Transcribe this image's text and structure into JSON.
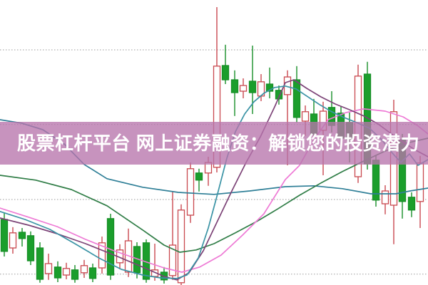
{
  "banner": {
    "text": "股票杠杆平台 网上证券融资：解锁您的投资潜力",
    "bg_color": "rgba(183,117,172,0.78)",
    "text_color": "#ffffff"
  },
  "chart_data": {
    "type": "candlestick",
    "title": "",
    "xlabel": "",
    "ylabel": "",
    "x_axis_visible": false,
    "y_axis_visible": false,
    "legend": "none",
    "background": "#ffffff",
    "xlim": [
      0,
      600
    ],
    "ylim": [
      0,
      100
    ],
    "gridlines": {
      "style": "dotted",
      "color": "#9a9a9a",
      "levels": [
        82.5,
        56.3,
        30.0,
        3.8
      ]
    },
    "colors": {
      "up_stroke": "#c9484f",
      "up_fill": "#ffffff",
      "down_stroke": "#178f27",
      "down_fill": "#1b9e2c"
    },
    "candles": {
      "columns": [
        "x",
        "open",
        "high",
        "low",
        "close"
      ],
      "rows": [
        [
          6,
          23.0,
          25.5,
          10.0,
          11.8
        ],
        [
          18,
          13.0,
          20.3,
          11.0,
          18.3
        ],
        [
          31,
          18.5,
          20.0,
          13.5,
          16.3
        ],
        [
          43,
          17.3,
          18.8,
          7.0,
          8.5
        ],
        [
          56,
          13.0,
          15.0,
          0.8,
          2.0
        ],
        [
          68,
          4.0,
          11.0,
          1.8,
          7.5
        ],
        [
          81,
          6.3,
          8.3,
          1.0,
          2.5
        ],
        [
          93,
          3.5,
          7.8,
          2.0,
          5.8
        ],
        [
          105,
          5.3,
          7.0,
          0.8,
          2.0
        ],
        [
          118,
          4.3,
          8.8,
          2.5,
          6.8
        ],
        [
          130,
          6.0,
          7.5,
          1.0,
          2.3
        ],
        [
          143,
          6.0,
          17.0,
          4.0,
          14.8
        ],
        [
          155,
          23.3,
          25.0,
          1.8,
          3.5
        ],
        [
          168,
          7.8,
          14.3,
          5.5,
          12.3
        ],
        [
          180,
          4.5,
          19.8,
          2.8,
          15.5
        ],
        [
          192,
          13.5,
          15.0,
          2.3,
          4.3
        ],
        [
          205,
          14.8,
          16.0,
          0.8,
          2.0
        ],
        [
          217,
          3.0,
          14.5,
          1.5,
          5.3
        ],
        [
          230,
          4.5,
          6.3,
          0.5,
          1.8
        ],
        [
          242,
          3.3,
          33.0,
          1.8,
          14.0
        ],
        [
          254,
          0.8,
          28.3,
          0.0,
          26.3
        ],
        [
          267,
          24.5,
          43.0,
          21.8,
          40.8
        ],
        [
          279,
          39.3,
          40.8,
          32.8,
          36.8
        ],
        [
          292,
          39.3,
          45.0,
          34.8,
          43.0
        ],
        [
          304,
          41.3,
          97.5,
          39.5,
          76.8
        ],
        [
          316,
          77.0,
          84.3,
          70.5,
          72.0
        ],
        [
          329,
          72.0,
          75.3,
          59.3,
          67.5
        ],
        [
          341,
          68.0,
          72.5,
          65.5,
          70.0
        ],
        [
          354,
          71.5,
          84.0,
          60.0,
          67.5
        ],
        [
          366,
          66.3,
          74.0,
          64.5,
          71.3
        ],
        [
          378,
          70.5,
          76.3,
          65.5,
          68.0
        ],
        [
          391,
          68.3,
          70.0,
          63.3,
          65.3
        ],
        [
          403,
          66.8,
          75.3,
          42.0,
          73.0
        ],
        [
          416,
          72.0,
          76.8,
          57.0,
          58.8
        ],
        [
          428,
          57.5,
          63.0,
          52.3,
          60.8
        ],
        [
          440,
          60.0,
          65.3,
          50.0,
          52.8
        ],
        [
          453,
          54.3,
          64.3,
          38.5,
          61.0
        ],
        [
          465,
          62.3,
          68.0,
          53.5,
          56.0
        ],
        [
          478,
          60.3,
          62.8,
          47.3,
          51.5
        ],
        [
          490,
          57.0,
          60.5,
          43.0,
          51.0
        ],
        [
          502,
          38.0,
          77.3,
          35.8,
          73.3
        ],
        [
          515,
          74.0,
          78.3,
          40.5,
          42.5
        ],
        [
          527,
          43.8,
          45.5,
          27.5,
          29.8
        ],
        [
          540,
          28.5,
          35.0,
          24.8,
          33.0
        ],
        [
          552,
          28.0,
          65.0,
          14.3,
          60.8
        ],
        [
          564,
          51.0,
          53.0,
          23.3,
          29.3
        ],
        [
          577,
          30.8,
          32.5,
          23.8,
          26.3
        ],
        [
          589,
          29.3,
          45.3,
          20.0,
          42.8
        ]
      ]
    },
    "moving_averages": [
      {
        "name": "ma-slow-teal",
        "color": "#2f7f97",
        "points": [
          [
            0,
            58.0
          ],
          [
            30,
            56.8
          ],
          [
            60,
            54.5
          ],
          [
            90,
            49.5
          ],
          [
            118,
            42.3
          ],
          [
            150,
            37.3
          ],
          [
            200,
            34.3
          ],
          [
            250,
            32.5
          ],
          [
            300,
            31.8
          ],
          [
            350,
            33.0
          ],
          [
            400,
            34.5
          ],
          [
            440,
            34.8
          ],
          [
            480,
            33.8
          ],
          [
            520,
            32.0
          ],
          [
            555,
            32.0
          ],
          [
            575,
            33.0
          ],
          [
            600,
            34.0
          ]
        ]
      },
      {
        "name": "ma-dark-green",
        "color": "#2f7d46",
        "points": [
          [
            0,
            38.5
          ],
          [
            50,
            36.8
          ],
          [
            100,
            33.5
          ],
          [
            150,
            27.8
          ],
          [
            200,
            19.3
          ],
          [
            230,
            14.0
          ],
          [
            252,
            11.5
          ],
          [
            275,
            12.3
          ],
          [
            300,
            14.5
          ],
          [
            330,
            18.3
          ],
          [
            360,
            22.3
          ],
          [
            390,
            26.8
          ],
          [
            420,
            31.5
          ],
          [
            450,
            35.8
          ],
          [
            480,
            39.8
          ],
          [
            510,
            43.5
          ],
          [
            540,
            47.0
          ],
          [
            570,
            49.8
          ],
          [
            600,
            51.5
          ]
        ]
      },
      {
        "name": "ma-pink",
        "color": "#ee7ad5",
        "points": [
          [
            0,
            27.0
          ],
          [
            40,
            23.8
          ],
          [
            80,
            20.5
          ],
          [
            120,
            16.0
          ],
          [
            160,
            12.0
          ],
          [
            200,
            8.5
          ],
          [
            230,
            6.0
          ],
          [
            255,
            4.5
          ],
          [
            280,
            6.3
          ],
          [
            310,
            10.5
          ],
          [
            340,
            17.5
          ],
          [
            370,
            25.0
          ],
          [
            400,
            37.0
          ],
          [
            420,
            42.0
          ],
          [
            440,
            51.0
          ],
          [
            460,
            58.0
          ],
          [
            485,
            60.5
          ],
          [
            510,
            61.8
          ],
          [
            540,
            61.0
          ],
          [
            565,
            59.0
          ],
          [
            585,
            56.0
          ],
          [
            600,
            53.0
          ]
        ]
      },
      {
        "name": "ma-purple",
        "color": "#7c4377",
        "points": [
          [
            0,
            23.5
          ],
          [
            40,
            21.0
          ],
          [
            80,
            18.0
          ],
          [
            120,
            14.5
          ],
          [
            160,
            10.5
          ],
          [
            200,
            6.3
          ],
          [
            230,
            3.0
          ],
          [
            248,
            1.8
          ],
          [
            265,
            4.3
          ],
          [
            285,
            12.0
          ],
          [
            305,
            22.5
          ],
          [
            325,
            33.0
          ],
          [
            345,
            43.0
          ],
          [
            365,
            52.0
          ],
          [
            385,
            62.5
          ],
          [
            400,
            71.0
          ],
          [
            412,
            72.0
          ],
          [
            430,
            69.0
          ],
          [
            450,
            66.0
          ],
          [
            470,
            63.5
          ],
          [
            490,
            61.5
          ],
          [
            510,
            59.3
          ],
          [
            530,
            56.5
          ],
          [
            550,
            52.8
          ],
          [
            570,
            49.3
          ],
          [
            585,
            47.0
          ],
          [
            600,
            45.0
          ]
        ]
      },
      {
        "name": "ma-fast-teal",
        "color": "#3a93a5",
        "points": [
          [
            0,
            25.8
          ],
          [
            35,
            23.0
          ],
          [
            70,
            19.5
          ],
          [
            105,
            14.5
          ],
          [
            140,
            9.3
          ],
          [
            170,
            5.5
          ],
          [
            200,
            3.5
          ],
          [
            225,
            2.5
          ],
          [
            248,
            2.3
          ],
          [
            262,
            3.5
          ],
          [
            278,
            9.5
          ],
          [
            292,
            20.0
          ],
          [
            305,
            32.0
          ],
          [
            318,
            44.5
          ],
          [
            330,
            53.8
          ],
          [
            343,
            60.0
          ],
          [
            356,
            64.3
          ],
          [
            370,
            67.3
          ],
          [
            385,
            69.3
          ],
          [
            400,
            69.8
          ],
          [
            415,
            68.8
          ],
          [
            430,
            66.3
          ],
          [
            448,
            63.3
          ],
          [
            465,
            60.8
          ],
          [
            482,
            58.8
          ],
          [
            500,
            57.0
          ],
          [
            518,
            55.0
          ],
          [
            535,
            51.0
          ],
          [
            550,
            46.3
          ],
          [
            562,
            43.0
          ],
          [
            574,
            46.0
          ],
          [
            586,
            42.0
          ],
          [
            600,
            44.0
          ]
        ]
      }
    ]
  }
}
